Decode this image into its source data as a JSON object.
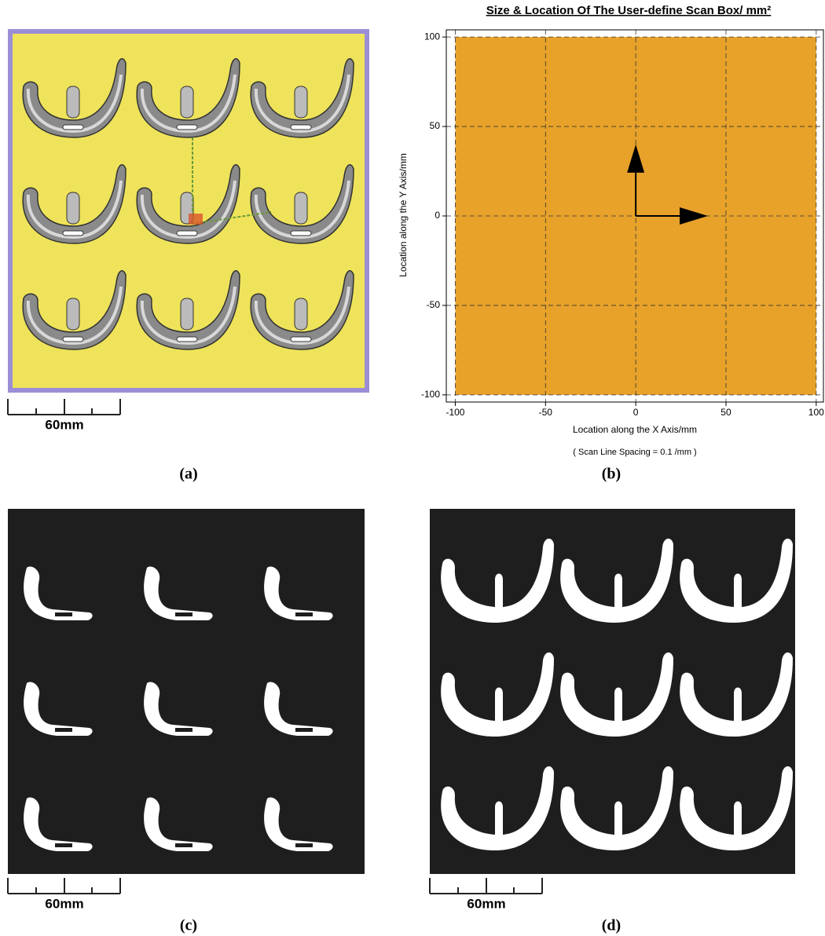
{
  "panels": [
    {
      "caption": "(a)",
      "scale_label": "60mm"
    },
    {
      "caption": "(b)"
    },
    {
      "caption": "(c)",
      "scale_label": "60mm"
    },
    {
      "caption": "(d)",
      "scale_label": "60mm"
    }
  ],
  "chart_data": {
    "type": "region",
    "title": "Size & Location Of The User-define Scan Box/ mm²",
    "xlabel": "Location along the X Axis/mm",
    "ylabel": "Location along the Y Axis/mm",
    "note": "( Scan Line Spacing = 0.1 /mm )",
    "xlim": [
      -105,
      104
    ],
    "ylim": [
      -104,
      104
    ],
    "xticks": [
      -100,
      -50,
      0,
      50,
      100
    ],
    "yticks": [
      -100,
      -50,
      0,
      50,
      100
    ],
    "grid": true,
    "region": {
      "x": [
        -100,
        100
      ],
      "y": [
        -100,
        100
      ],
      "color": "#e8a22a"
    },
    "arrows": {
      "x": 40,
      "y": 40
    }
  }
}
